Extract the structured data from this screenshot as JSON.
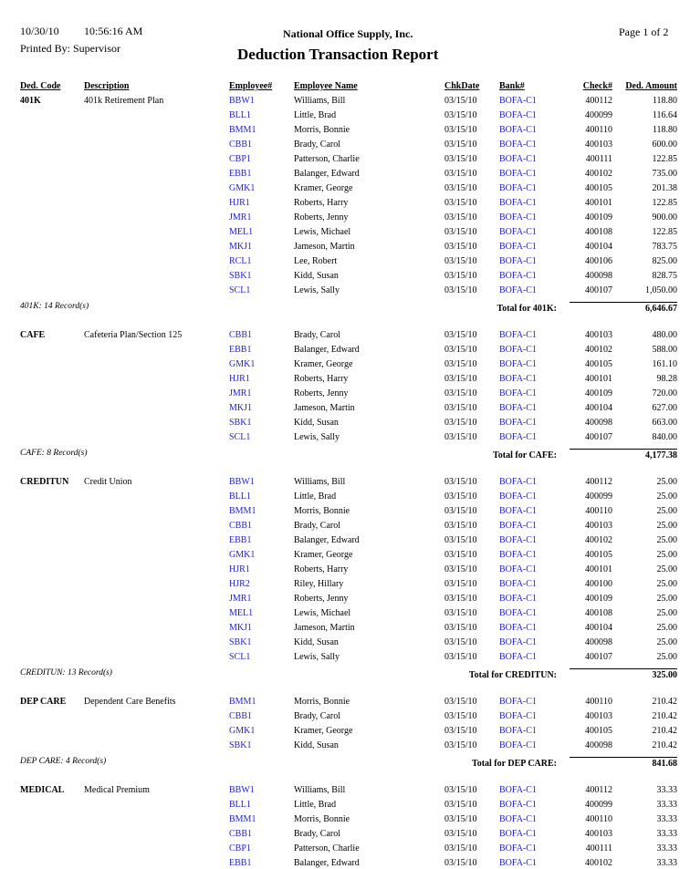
{
  "header": {
    "date": "10/30/10",
    "time": "10:56:16 AM",
    "printed_by": "Printed By: Supervisor",
    "company": "National Office Supply, Inc.",
    "title": "Deduction Transaction Report",
    "page": "Page 1 of 2"
  },
  "columns": [
    "Ded. Code",
    "Description",
    "Employee#",
    "Employee Name",
    "ChkDate",
    "Bank#",
    "Check#",
    "Ded. Amount"
  ],
  "groups": [
    {
      "code": "401K",
      "description": "401k Retirement Plan",
      "rows": [
        [
          "BBW1",
          "Williams, Bill",
          "03/15/10",
          "BOFA-C1",
          "400112",
          "118.80"
        ],
        [
          "BLL1",
          "Little, Brad",
          "03/15/10",
          "BOFA-C1",
          "400099",
          "116.64"
        ],
        [
          "BMM1",
          "Morris, Bonnie",
          "03/15/10",
          "BOFA-C1",
          "400110",
          "118.80"
        ],
        [
          "CBB1",
          "Brady, Carol",
          "03/15/10",
          "BOFA-C1",
          "400103",
          "600.00"
        ],
        [
          "CBP1",
          "Patterson, Charlie",
          "03/15/10",
          "BOFA-C1",
          "400111",
          "122.85"
        ],
        [
          "EBB1",
          "Balanger, Edward",
          "03/15/10",
          "BOFA-C1",
          "400102",
          "735.00"
        ],
        [
          "GMK1",
          "Kramer, George",
          "03/15/10",
          "BOFA-C1",
          "400105",
          "201.38"
        ],
        [
          "HJR1",
          "Roberts, Harry",
          "03/15/10",
          "BOFA-C1",
          "400101",
          "122.85"
        ],
        [
          "JMR1",
          "Roberts, Jenny",
          "03/15/10",
          "BOFA-C1",
          "400109",
          "900.00"
        ],
        [
          "MEL1",
          "Lewis, Michael",
          "03/15/10",
          "BOFA-C1",
          "400108",
          "122.85"
        ],
        [
          "MKJ1",
          "Jameson, Martin",
          "03/15/10",
          "BOFA-C1",
          "400104",
          "783.75"
        ],
        [
          "RCL1",
          "Lee, Robert",
          "03/15/10",
          "BOFA-C1",
          "400106",
          "825.00"
        ],
        [
          "SBK1",
          "Kidd, Susan",
          "03/15/10",
          "BOFA-C1",
          "400098",
          "828.75"
        ],
        [
          "SCL1",
          "Lewis, Sally",
          "03/15/10",
          "BOFA-C1",
          "400107",
          "1,050.00"
        ]
      ],
      "count_label": "401K: 14 Record(s)",
      "total_label": "Total for 401K:",
      "total": "6,646.67"
    },
    {
      "code": "CAFE",
      "description": "Cafeteria Plan/Section 125",
      "rows": [
        [
          "CBB1",
          "Brady, Carol",
          "03/15/10",
          "BOFA-C1",
          "400103",
          "480.00"
        ],
        [
          "EBB1",
          "Balanger, Edward",
          "03/15/10",
          "BOFA-C1",
          "400102",
          "588.00"
        ],
        [
          "GMK1",
          "Kramer, George",
          "03/15/10",
          "BOFA-C1",
          "400105",
          "161.10"
        ],
        [
          "HJR1",
          "Roberts, Harry",
          "03/15/10",
          "BOFA-C1",
          "400101",
          "98.28"
        ],
        [
          "JMR1",
          "Roberts, Jenny",
          "03/15/10",
          "BOFA-C1",
          "400109",
          "720.00"
        ],
        [
          "MKJ1",
          "Jameson, Martin",
          "03/15/10",
          "BOFA-C1",
          "400104",
          "627.00"
        ],
        [
          "SBK1",
          "Kidd, Susan",
          "03/15/10",
          "BOFA-C1",
          "400098",
          "663.00"
        ],
        [
          "SCL1",
          "Lewis, Sally",
          "03/15/10",
          "BOFA-C1",
          "400107",
          "840.00"
        ]
      ],
      "count_label": "CAFE: 8 Record(s)",
      "total_label": "Total for CAFE:",
      "total": "4,177.38"
    },
    {
      "code": "CREDITUN",
      "description": "Credit Union",
      "rows": [
        [
          "BBW1",
          "Williams, Bill",
          "03/15/10",
          "BOFA-C1",
          "400112",
          "25.00"
        ],
        [
          "BLL1",
          "Little, Brad",
          "03/15/10",
          "BOFA-C1",
          "400099",
          "25.00"
        ],
        [
          "BMM1",
          "Morris, Bonnie",
          "03/15/10",
          "BOFA-C1",
          "400110",
          "25.00"
        ],
        [
          "CBB1",
          "Brady, Carol",
          "03/15/10",
          "BOFA-C1",
          "400103",
          "25.00"
        ],
        [
          "EBB1",
          "Balanger, Edward",
          "03/15/10",
          "BOFA-C1",
          "400102",
          "25.00"
        ],
        [
          "GMK1",
          "Kramer, George",
          "03/15/10",
          "BOFA-C1",
          "400105",
          "25.00"
        ],
        [
          "HJR1",
          "Roberts, Harry",
          "03/15/10",
          "BOFA-C1",
          "400101",
          "25.00"
        ],
        [
          "HJR2",
          "Riley, Hillary",
          "03/15/10",
          "BOFA-C1",
          "400100",
          "25.00"
        ],
        [
          "JMR1",
          "Roberts, Jenny",
          "03/15/10",
          "BOFA-C1",
          "400109",
          "25.00"
        ],
        [
          "MEL1",
          "Lewis, Michael",
          "03/15/10",
          "BOFA-C1",
          "400108",
          "25.00"
        ],
        [
          "MKJ1",
          "Jameson, Martin",
          "03/15/10",
          "BOFA-C1",
          "400104",
          "25.00"
        ],
        [
          "SBK1",
          "Kidd, Susan",
          "03/15/10",
          "BOFA-C1",
          "400098",
          "25.00"
        ],
        [
          "SCL1",
          "Lewis, Sally",
          "03/15/10",
          "BOFA-C1",
          "400107",
          "25.00"
        ]
      ],
      "count_label": "CREDITUN: 13 Record(s)",
      "total_label": "Total for CREDITUN:",
      "total": "325.00"
    },
    {
      "code": "DEP CARE",
      "description": "Dependent Care Benefits",
      "rows": [
        [
          "BMM1",
          "Morris, Bonnie",
          "03/15/10",
          "BOFA-C1",
          "400110",
          "210.42"
        ],
        [
          "CBB1",
          "Brady, Carol",
          "03/15/10",
          "BOFA-C1",
          "400103",
          "210.42"
        ],
        [
          "GMK1",
          "Kramer, George",
          "03/15/10",
          "BOFA-C1",
          "400105",
          "210.42"
        ],
        [
          "SBK1",
          "Kidd, Susan",
          "03/15/10",
          "BOFA-C1",
          "400098",
          "210.42"
        ]
      ],
      "count_label": "DEP CARE: 4 Record(s)",
      "total_label": "Total for DEP CARE:",
      "total": "841.68"
    },
    {
      "code": "MEDICAL",
      "description": "Medical Premium",
      "rows": [
        [
          "BBW1",
          "Williams, Bill",
          "03/15/10",
          "BOFA-C1",
          "400112",
          "33.33"
        ],
        [
          "BLL1",
          "Little, Brad",
          "03/15/10",
          "BOFA-C1",
          "400099",
          "33.33"
        ],
        [
          "BMM1",
          "Morris, Bonnie",
          "03/15/10",
          "BOFA-C1",
          "400110",
          "33.33"
        ],
        [
          "CBB1",
          "Brady, Carol",
          "03/15/10",
          "BOFA-C1",
          "400103",
          "33.33"
        ],
        [
          "CBP1",
          "Patterson, Charlie",
          "03/15/10",
          "BOFA-C1",
          "400111",
          "33.33"
        ],
        [
          "EBB1",
          "Balanger, Edward",
          "03/15/10",
          "BOFA-C1",
          "400102",
          "33.33"
        ]
      ]
    }
  ]
}
